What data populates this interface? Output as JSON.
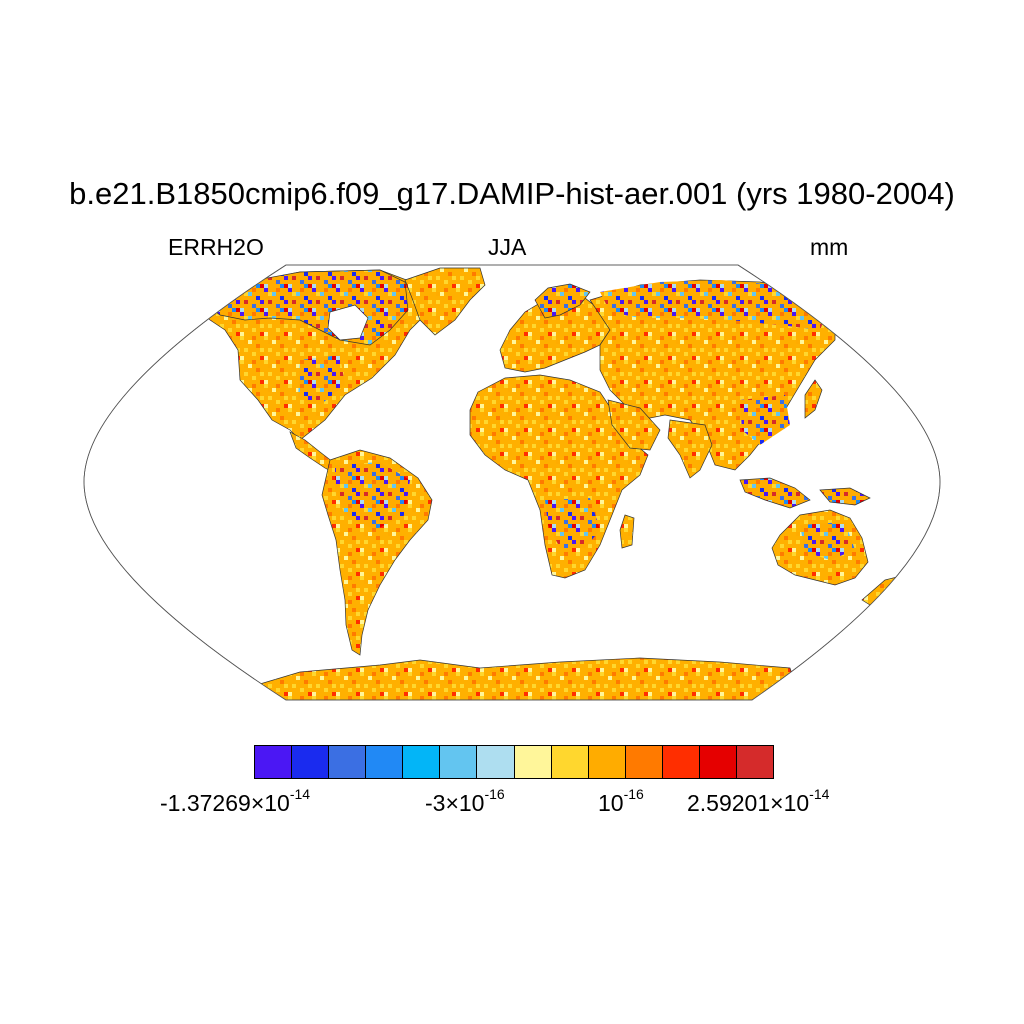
{
  "title": "b.e21.B1850cmip6.f09_g17.DAMIP-hist-aer.001 (yrs 1980-2004)",
  "left_label": "ERRH2O",
  "center_label": "JJA",
  "right_label": "mm",
  "projection": "Robinson",
  "colorbar": {
    "colors": [
      "#4B17F4",
      "#1A2BEF",
      "#3B6FE3",
      "#2189F5",
      "#03B5F7",
      "#63C5F0",
      "#AEDEF0",
      "#FFF69A",
      "#FFD72E",
      "#FFAC00",
      "#FF7A00",
      "#FF2E00",
      "#E50000",
      "#D52B2B"
    ],
    "labels": [
      {
        "mantissa": "-1.37269",
        "times": "×",
        "base": "10",
        "exponent": "-14"
      },
      {
        "mantissa": "-3",
        "times": "×",
        "base": "10",
        "exponent": "-16"
      },
      {
        "mantissa": "",
        "times": "",
        "base": "10",
        "exponent": "-16"
      },
      {
        "mantissa": "2.59201",
        "times": "×",
        "base": "10",
        "exponent": "-14"
      }
    ]
  }
}
